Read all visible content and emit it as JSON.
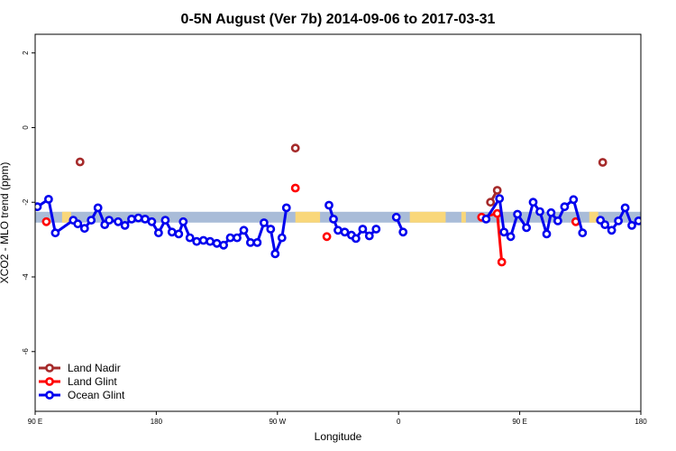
{
  "chart_data": {
    "type": "line",
    "title": "0-5N August (Ver 7b)   2014-09-06 to 2017-03-31",
    "xlabel": "Longitude",
    "ylabel": "XCO2 - MLO trend (ppm)",
    "xlim": [
      -90,
      180
    ],
    "ylim": [
      -7.6,
      2.5
    ],
    "x_ticks": [
      {
        "value": -90,
        "label": "90 E"
      },
      {
        "value": -36,
        "label": "180"
      },
      {
        "value": 18,
        "label": "90 W"
      },
      {
        "value": 72,
        "label": "0"
      },
      {
        "value": 126,
        "label": "90 E"
      },
      {
        "value": 180,
        "label": "180"
      }
    ],
    "y_ticks": [
      2,
      0,
      -2,
      -4,
      -6
    ],
    "legend_position": "bottom-left",
    "background_band": {
      "y_center": -2.4,
      "colors": {
        "ocean": "#a9bcd8",
        "land": "#f9d77a"
      },
      "land_ranges": [
        [
          -78,
          -74
        ],
        [
          26,
          37
        ],
        [
          77,
          93
        ],
        [
          100,
          102
        ],
        [
          157,
          161
        ]
      ]
    },
    "series": [
      {
        "name": "Land Nadir",
        "color": "#a52a2a",
        "points": [
          [
            -70,
            -0.92
          ],
          [
            26,
            -0.55
          ],
          [
            113,
            -2.0
          ],
          [
            116,
            -1.68
          ],
          [
            163,
            -0.93
          ]
        ],
        "segments": [
          [
            113,
            116
          ]
        ]
      },
      {
        "name": "Land Glint",
        "color": "#ff0000",
        "points": [
          [
            -85,
            -2.52
          ],
          [
            26,
            -1.62
          ],
          [
            40,
            -2.92
          ],
          [
            109,
            -2.4
          ],
          [
            116,
            -2.3
          ],
          [
            118,
            -3.6
          ],
          [
            151,
            -2.52
          ]
        ],
        "segments": [
          [
            109,
            116,
            118
          ]
        ]
      },
      {
        "name": "Ocean Glint",
        "color": "#0000ee",
        "points": [
          [
            -89,
            -2.12
          ],
          [
            -84,
            -1.92
          ],
          [
            -81,
            -2.82
          ],
          [
            -73,
            -2.48
          ],
          [
            -71,
            -2.58
          ],
          [
            -68,
            -2.7
          ],
          [
            -65,
            -2.48
          ],
          [
            -62,
            -2.15
          ],
          [
            -59,
            -2.6
          ],
          [
            -57,
            -2.48
          ],
          [
            -53,
            -2.52
          ],
          [
            -50,
            -2.62
          ],
          [
            -47,
            -2.45
          ],
          [
            -44,
            -2.42
          ],
          [
            -41,
            -2.45
          ],
          [
            -38,
            -2.52
          ],
          [
            -35,
            -2.82
          ],
          [
            -32,
            -2.48
          ],
          [
            -29,
            -2.8
          ],
          [
            -26,
            -2.85
          ],
          [
            -24,
            -2.52
          ],
          [
            -21,
            -2.95
          ],
          [
            -18,
            -3.05
          ],
          [
            -15,
            -3.02
          ],
          [
            -12,
            -3.05
          ],
          [
            -9,
            -3.1
          ],
          [
            -6,
            -3.15
          ],
          [
            -3,
            -2.95
          ],
          [
            0,
            -2.95
          ],
          [
            3,
            -2.75
          ],
          [
            6,
            -3.08
          ],
          [
            9,
            -3.08
          ],
          [
            12,
            -2.55
          ],
          [
            15,
            -2.72
          ],
          [
            17,
            -3.38
          ],
          [
            20,
            -2.95
          ],
          [
            22,
            -2.15
          ],
          [
            41,
            -2.08
          ],
          [
            43,
            -2.45
          ],
          [
            45,
            -2.75
          ],
          [
            48,
            -2.8
          ],
          [
            51,
            -2.88
          ],
          [
            53,
            -2.97
          ],
          [
            56,
            -2.72
          ],
          [
            59,
            -2.9
          ],
          [
            62,
            -2.72
          ],
          [
            71,
            -2.4
          ],
          [
            74,
            -2.8
          ],
          [
            111,
            -2.45
          ],
          [
            117,
            -1.9
          ],
          [
            119,
            -2.8
          ],
          [
            122,
            -2.92
          ],
          [
            125,
            -2.32
          ],
          [
            129,
            -2.68
          ],
          [
            132,
            -2.0
          ],
          [
            135,
            -2.25
          ],
          [
            138,
            -2.85
          ],
          [
            140,
            -2.28
          ],
          [
            143,
            -2.5
          ],
          [
            146,
            -2.12
          ],
          [
            150,
            -1.93
          ],
          [
            154,
            -2.82
          ],
          [
            162,
            -2.48
          ],
          [
            164,
            -2.6
          ],
          [
            167,
            -2.75
          ],
          [
            170,
            -2.5
          ],
          [
            173,
            -2.15
          ],
          [
            176,
            -2.62
          ],
          [
            179,
            -2.5
          ],
          [
            182,
            -2.52
          ],
          [
            185,
            -2.65
          ],
          [
            188,
            -2.48
          ],
          [
            191,
            -2.42
          ],
          [
            194,
            -2.5
          ],
          [
            197,
            -2.52
          ]
        ],
        "segments": [
          [
            -89,
            -84,
            -81,
            -73,
            -71,
            -68,
            -65,
            -62,
            -59,
            -57,
            -53,
            -50,
            -47,
            -44,
            -41,
            -38,
            -35,
            -32,
            -29,
            -26,
            -24,
            -21,
            -18,
            -15,
            -12,
            -9,
            -6,
            -3,
            0,
            3,
            6,
            9,
            12,
            15,
            17,
            20,
            22
          ],
          [
            41,
            43,
            45,
            48,
            51,
            53,
            56,
            59,
            62
          ],
          [
            71,
            74
          ],
          [
            111,
            117,
            119,
            122,
            125,
            129,
            132,
            135,
            138,
            140,
            143,
            146,
            150,
            154
          ],
          [
            162,
            164,
            167,
            170,
            173,
            176,
            179,
            182,
            185,
            188,
            191,
            194,
            197
          ]
        ]
      }
    ]
  }
}
